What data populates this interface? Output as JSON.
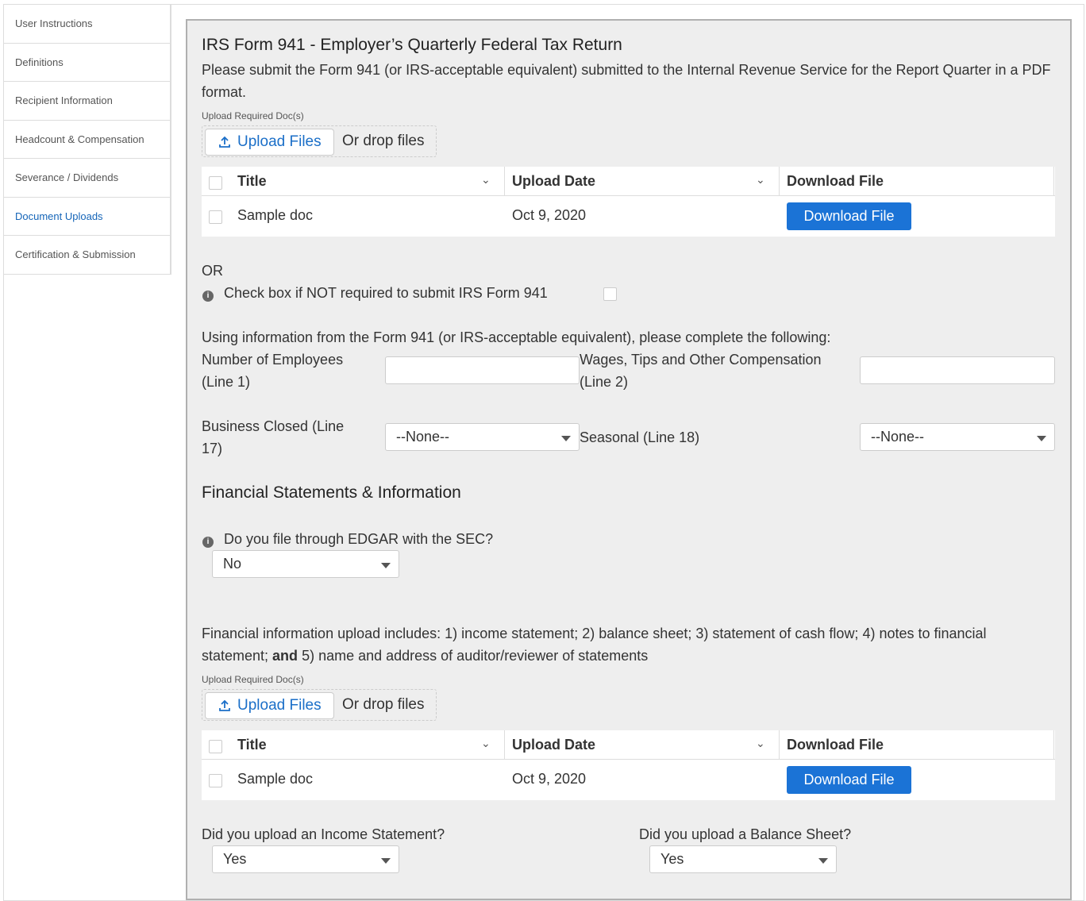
{
  "sidebar": {
    "items": [
      {
        "label": "User Instructions"
      },
      {
        "label": "Definitions"
      },
      {
        "label": "Recipient Information"
      },
      {
        "label": "Headcount & Compensation"
      },
      {
        "label": "Severance / Dividends"
      },
      {
        "label": "Document Uploads",
        "active": true
      },
      {
        "label": "Certification & Submission"
      }
    ]
  },
  "form941": {
    "title": "IRS Form 941 - Employer’s Quarterly Federal Tax Return",
    "description": "Please submit the Form 941 (or IRS-acceptable equivalent) submitted to the Internal Revenue Service for the Report Quarter in a PDF format.",
    "upload_label": "Upload Required Doc(s)",
    "upload_button": "Upload Files",
    "drop_text": "Or drop files",
    "table": {
      "columns": [
        "Title",
        "Upload Date",
        "Download File"
      ],
      "rows": [
        {
          "title": "Sample doc",
          "date": "Oct 9, 2020",
          "action": "Download File"
        }
      ]
    },
    "or_text": "OR",
    "not_required_label": "Check box if NOT required to submit IRS Form 941",
    "instructions": "Using information from the Form 941 (or IRS-acceptable equivalent), please complete the following:",
    "employees_label": "Number of Employees (Line 1)",
    "employees_value": "",
    "wages_label": "Wages, Tips and Other Compensation (Line 2)",
    "wages_value": "",
    "business_closed_label": "Business Closed (Line 17)",
    "business_closed_value": "--None--",
    "seasonal_label": "Seasonal (Line 18)",
    "seasonal_value": "--None--"
  },
  "financial": {
    "title": "Financial Statements & Information",
    "edgar_label": "Do you file through EDGAR with the SEC?",
    "edgar_value": "No",
    "desc_part1": "Financial information upload includes: 1) income statement; 2) balance sheet; 3) statement of cash flow; 4) notes to financial statement; ",
    "desc_bold": "and",
    "desc_part2": " 5) name and address of auditor/reviewer of statements",
    "upload_label": "Upload Required Doc(s)",
    "upload_button": "Upload Files",
    "drop_text": "Or drop files",
    "table": {
      "columns": [
        "Title",
        "Upload Date",
        "Download File"
      ],
      "rows": [
        {
          "title": "Sample doc",
          "date": "Oct 9, 2020",
          "action": "Download File"
        }
      ]
    },
    "income_label": "Did you upload an Income Statement?",
    "income_value": "Yes",
    "balance_label": "Did you upload a Balance Sheet?",
    "balance_value": "Yes"
  },
  "colors": {
    "accent": "#1b73d6",
    "link": "#1565b8",
    "panel": "#eeeeee"
  }
}
